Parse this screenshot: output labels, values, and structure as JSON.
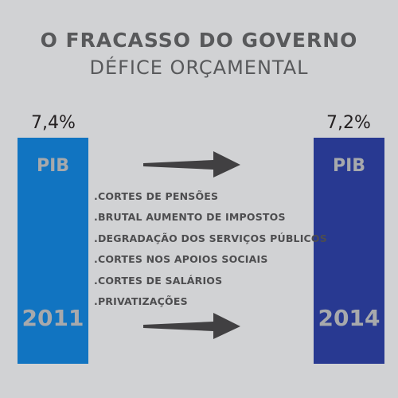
{
  "title": "O FRACASSO DO GOVERNO",
  "subtitle": "DÉFICE ORÇAMENTAL",
  "left": {
    "value": "7,4%",
    "label": "PIB",
    "year": "2011",
    "color": "#1174c1"
  },
  "right": {
    "value": "7,2%",
    "label": "PIB",
    "year": "2014",
    "color": "#283991"
  },
  "measures": [
    ".CORTES DE PENSÕES",
    ".BRUTAL AUMENTO DE IMPOSTOS",
    ".DEGRADAÇÃO DOS SERVIÇOS PÚBLICOS",
    ".CORTES NOS APOIOS SOCIAIS",
    ".CORTES DE SALÁRIOS",
    ".PRIVATIZAÇÕES"
  ],
  "arrow_color": "#414042"
}
